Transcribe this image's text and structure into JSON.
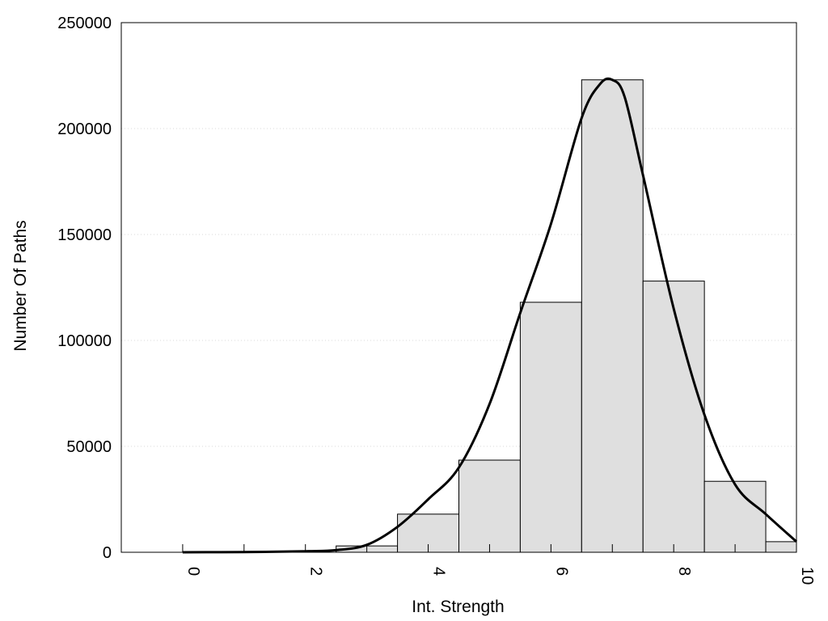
{
  "chart_data": {
    "type": "bar",
    "title": "",
    "xlabel": "Int. Strength",
    "ylabel": "Number Of Paths",
    "xlim": [
      -1,
      10
    ],
    "ylim": [
      0,
      250000
    ],
    "x_ticks": [
      "0",
      "2",
      "4",
      "6",
      "8",
      "10"
    ],
    "y_ticks": [
      "0",
      "50000",
      "100000",
      "150000",
      "200000",
      "250000"
    ],
    "grid": "horizontal dotted",
    "legend": "none",
    "histogram": {
      "bin_width": 1,
      "bins": [
        {
          "x": 0,
          "value": 0
        },
        {
          "x": 1,
          "value": 0
        },
        {
          "x": 2,
          "value": 0
        },
        {
          "x": 3,
          "value": 3000
        },
        {
          "x": 4,
          "value": 18000
        },
        {
          "x": 5,
          "value": 43500
        },
        {
          "x": 6,
          "value": 118000
        },
        {
          "x": 7,
          "value": 223000
        },
        {
          "x": 8,
          "value": 128000
        },
        {
          "x": 9,
          "value": 33500
        },
        {
          "x": 10,
          "value": 5000
        }
      ]
    },
    "density_curve": {
      "x": [
        0,
        1,
        2,
        2.5,
        3,
        3.5,
        4,
        4.5,
        5,
        5.5,
        6,
        6.5,
        6.8,
        7,
        7.2,
        7.5,
        8,
        8.5,
        9,
        9.5,
        10
      ],
      "y": [
        0,
        100,
        500,
        1000,
        3500,
        12000,
        25000,
        40000,
        70000,
        113000,
        155000,
        205000,
        221000,
        223000,
        215000,
        178000,
        115000,
        65000,
        32000,
        18000,
        5000
      ]
    },
    "colors": {
      "bar_fill": "#dfdfdf",
      "bar_stroke": "#000000",
      "curve": "#000000",
      "grid": "#d8d8d8"
    }
  }
}
